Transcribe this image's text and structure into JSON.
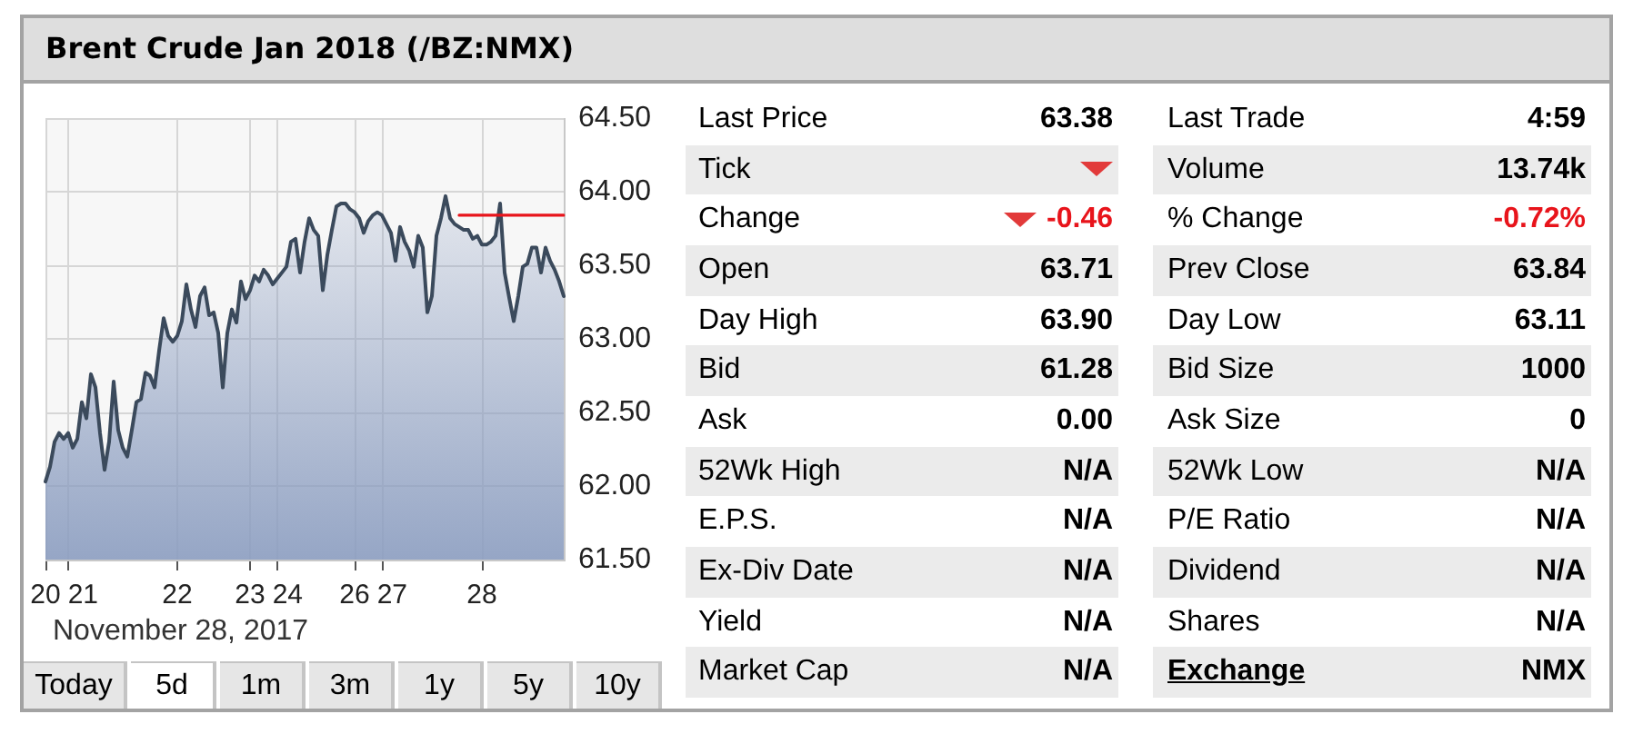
{
  "chart_data": [
    {
      "type": "area",
      "title": "Brent Crude Jan 2018 (/BZ:NMX)",
      "annotations": [
        "November 28, 2017"
      ],
      "categories": [
        "20",
        null,
        null,
        null,
        null,
        "21",
        null,
        null,
        null,
        null,
        null,
        null,
        null,
        null,
        null,
        null,
        null,
        null,
        null,
        null,
        null,
        null,
        null,
        null,
        null,
        null,
        null,
        null,
        null,
        "22",
        null,
        null,
        null,
        null,
        null,
        null,
        null,
        null,
        null,
        null,
        null,
        null,
        null,
        null,
        null,
        "23",
        null,
        null,
        null,
        null,
        null,
        "24",
        null,
        null,
        null,
        null,
        null,
        null,
        null,
        null,
        null,
        null,
        null,
        null,
        null,
        null,
        null,
        null,
        "26",
        null,
        null,
        null,
        null,
        null,
        "27",
        null,
        null,
        null,
        null,
        null,
        null,
        null,
        null,
        null,
        null,
        null,
        null,
        null,
        null,
        null,
        null,
        null,
        null,
        null,
        null,
        null,
        "28",
        null,
        null,
        null,
        null,
        null,
        null,
        null,
        null,
        null,
        null,
        null,
        null,
        null,
        null,
        null,
        null,
        null,
        null
      ],
      "series": [
        {
          "type": "area",
          "color": "#3b4a5c",
          "values": [
            62.03,
            62.13,
            62.3,
            62.36,
            62.32,
            62.36,
            62.26,
            62.32,
            62.57,
            62.46,
            62.76,
            62.67,
            62.36,
            62.11,
            62.3,
            62.71,
            62.38,
            62.26,
            62.2,
            62.38,
            62.57,
            62.59,
            62.77,
            62.75,
            62.67,
            62.92,
            63.14,
            63.02,
            62.98,
            63.02,
            63.12,
            63.37,
            63.2,
            63.08,
            63.29,
            63.35,
            63.16,
            63.18,
            63.04,
            62.67,
            63.04,
            63.2,
            63.11,
            63.39,
            63.27,
            63.33,
            63.43,
            63.39,
            63.47,
            63.43,
            63.37,
            63.41,
            63.45,
            63.49,
            63.66,
            63.68,
            63.45,
            63.66,
            63.82,
            63.74,
            63.7,
            63.33,
            63.57,
            63.74,
            63.9,
            63.92,
            63.92,
            63.88,
            63.86,
            63.82,
            63.72,
            63.8,
            63.84,
            63.86,
            63.84,
            63.78,
            63.72,
            63.53,
            63.76,
            63.66,
            63.6,
            63.49,
            63.7,
            63.62,
            63.18,
            63.29,
            63.7,
            63.82,
            63.97,
            63.82,
            63.78,
            63.76,
            63.74,
            63.74,
            63.68,
            63.7,
            63.64,
            63.64,
            63.66,
            63.7,
            63.92,
            63.45,
            63.28,
            63.12,
            63.29,
            63.49,
            63.51,
            63.62,
            63.62,
            63.45,
            63.62,
            63.53,
            63.47,
            63.39,
            63.29
          ]
        },
        {
          "type": "line",
          "color": "#e8141b",
          "values": [
            null,
            null,
            null,
            null,
            null,
            null,
            null,
            null,
            null,
            null,
            null,
            null,
            null,
            null,
            null,
            null,
            null,
            null,
            null,
            null,
            null,
            null,
            null,
            null,
            null,
            null,
            null,
            null,
            null,
            null,
            null,
            null,
            null,
            null,
            null,
            null,
            null,
            null,
            null,
            null,
            null,
            null,
            null,
            null,
            null,
            null,
            null,
            null,
            null,
            null,
            null,
            null,
            null,
            null,
            null,
            null,
            null,
            null,
            null,
            null,
            null,
            null,
            null,
            null,
            null,
            null,
            null,
            null,
            null,
            null,
            null,
            null,
            null,
            null,
            null,
            null,
            null,
            null,
            null,
            null,
            null,
            null,
            null,
            null,
            null,
            null,
            null,
            null,
            null,
            null,
            null,
            63.84,
            63.84,
            63.84,
            63.84,
            63.84,
            63.84,
            63.84,
            63.84,
            63.84,
            63.84,
            63.84,
            63.84,
            63.84,
            63.84,
            63.84,
            63.84,
            63.84,
            63.84,
            63.84,
            63.84,
            63.84,
            63.84,
            63.84,
            63.84
          ]
        }
      ],
      "ylim": [
        61.5,
        64.5
      ],
      "yticks": [
        {
          "value": 61.5,
          "label": "61.50"
        },
        {
          "value": 62,
          "label": "62.00"
        },
        {
          "value": 62.5,
          "label": "62.50"
        },
        {
          "value": 63,
          "label": "63.00"
        },
        {
          "value": 63.5,
          "label": "63.50"
        },
        {
          "value": 64,
          "label": "64.00"
        },
        {
          "value": 64.5,
          "label": "64.50"
        }
      ],
      "grid": true,
      "marker": "none"
    },
    {
      "type": "other",
      "categories": [
        "Last Price",
        "Tick",
        "Change",
        "Open",
        "Day High",
        "Bid",
        "Ask",
        "52Wk High",
        "E.P.S.",
        "Ex-Div Date",
        "Yield",
        "Market Cap",
        "Last Trade",
        "Volume",
        "% Change",
        "Prev Close",
        "Day Low",
        "Bid Size",
        "Ask Size",
        "52Wk Low",
        "P/E Ratio",
        "Dividend",
        "Shares",
        "Exchange"
      ],
      "value_labels": [
        "63.38",
        null,
        "-0.46",
        "63.71",
        "63.90",
        "61.28",
        "0.00",
        "N/A",
        "N/A",
        "N/A",
        "N/A",
        "N/A",
        "4:59",
        "13.74k",
        "-0.72%",
        "63.84",
        "63.11",
        "1000",
        "0",
        "N/A",
        "N/A",
        "N/A",
        "N/A",
        "NMX"
      ],
      "colors": [
        null,
        "#ebebeb",
        null,
        "#ebebeb",
        null,
        "#ebebeb",
        null,
        "#ebebeb",
        null,
        "#ebebeb",
        null,
        "#ebebeb",
        null,
        "#ebebeb",
        null,
        "#ebebeb",
        null,
        "#ebebeb",
        null,
        "#ebebeb",
        null,
        "#ebebeb",
        null,
        "#ebebeb"
      ]
    },
    {
      "type": "other",
      "categories": [
        "Today",
        "5d",
        "1m",
        "3m",
        "1y",
        "5y",
        "10y"
      ]
    }
  ]
}
